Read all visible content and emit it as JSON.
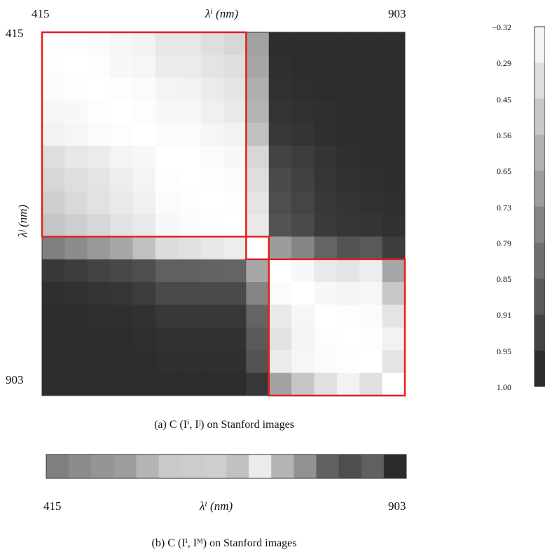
{
  "heatmap": {
    "x_start_label": "415",
    "x_end_label": "903",
    "y_start_label": "415",
    "y_end_label": "903",
    "x_axis_label": "λⁱ (nm)",
    "y_axis_label": "λʲ (nm)",
    "caption": "(a) C (Iⁱ, Iʲ) on Stanford images"
  },
  "colorbar": {
    "ticks": [
      "−0.32",
      "0.29",
      "0.45",
      "0.56",
      "0.65",
      "0.73",
      "0.79",
      "0.85",
      "0.91",
      "0.95",
      "1.00"
    ]
  },
  "strip": {
    "start_label": "415",
    "end_label": "903",
    "axis_label": "λⁱ (nm)",
    "caption": "(b) C (Iⁱ, Iᴹ) on Stanford images"
  },
  "colors": {
    "highlight": "#e02020",
    "dark": "#222222",
    "light": "#ffffff"
  },
  "chart_data": [
    {
      "type": "heatmap",
      "title": "(a) C (Iⁱ, Iʲ) on Stanford images",
      "xlabel": "λⁱ (nm)",
      "ylabel": "λʲ (nm)",
      "x_range": [
        415,
        903
      ],
      "y_range": [
        415,
        903
      ],
      "colorbar_ticks": [
        -0.32,
        0.29,
        0.45,
        0.56,
        0.65,
        0.73,
        0.79,
        0.85,
        0.91,
        0.95,
        1.0
      ],
      "values": [
        [
          1.0,
          0.99,
          0.98,
          0.96,
          0.94,
          0.89,
          0.89,
          0.85,
          0.82,
          0.58,
          0.05,
          0.05,
          0.05,
          0.05,
          0.05,
          0.05
        ],
        [
          0.99,
          1.0,
          0.99,
          0.97,
          0.96,
          0.91,
          0.91,
          0.88,
          0.85,
          0.6,
          0.06,
          0.05,
          0.05,
          0.05,
          0.05,
          0.05
        ],
        [
          0.98,
          0.99,
          1.0,
          0.99,
          0.98,
          0.95,
          0.94,
          0.91,
          0.88,
          0.64,
          0.07,
          0.06,
          0.05,
          0.05,
          0.05,
          0.05
        ],
        [
          0.96,
          0.97,
          0.99,
          1.0,
          0.99,
          0.97,
          0.96,
          0.93,
          0.9,
          0.66,
          0.08,
          0.07,
          0.06,
          0.05,
          0.05,
          0.05
        ],
        [
          0.94,
          0.96,
          0.98,
          0.99,
          1.0,
          0.98,
          0.98,
          0.96,
          0.94,
          0.72,
          0.1,
          0.08,
          0.06,
          0.05,
          0.05,
          0.05
        ],
        [
          0.85,
          0.89,
          0.91,
          0.95,
          0.97,
          1.0,
          1.0,
          0.98,
          0.97,
          0.82,
          0.15,
          0.12,
          0.08,
          0.06,
          0.05,
          0.05
        ],
        [
          0.82,
          0.85,
          0.88,
          0.92,
          0.95,
          0.99,
          1.0,
          0.99,
          0.98,
          0.85,
          0.18,
          0.14,
          0.09,
          0.07,
          0.06,
          0.05
        ],
        [
          0.78,
          0.83,
          0.87,
          0.9,
          0.93,
          0.98,
          0.99,
          1.0,
          0.99,
          0.88,
          0.2,
          0.16,
          0.1,
          0.08,
          0.07,
          0.06
        ],
        [
          0.74,
          0.78,
          0.82,
          0.87,
          0.9,
          0.97,
          0.98,
          0.99,
          1.0,
          0.9,
          0.22,
          0.18,
          0.11,
          0.09,
          0.08,
          0.07
        ],
        [
          0.42,
          0.48,
          0.54,
          0.6,
          0.72,
          0.84,
          0.86,
          0.89,
          0.92,
          1.0,
          0.55,
          0.45,
          0.3,
          0.22,
          0.25,
          0.12
        ],
        [
          0.1,
          0.12,
          0.15,
          0.17,
          0.2,
          0.28,
          0.28,
          0.29,
          0.3,
          0.6,
          1.0,
          0.97,
          0.9,
          0.88,
          0.92,
          0.6
        ],
        [
          0.06,
          0.07,
          0.08,
          0.09,
          0.12,
          0.18,
          0.18,
          0.18,
          0.18,
          0.45,
          0.98,
          1.0,
          0.97,
          0.95,
          0.96,
          0.75
        ],
        [
          0.05,
          0.05,
          0.06,
          0.06,
          0.07,
          0.1,
          0.1,
          0.1,
          0.1,
          0.3,
          0.9,
          0.96,
          1.0,
          0.99,
          0.98,
          0.88
        ],
        [
          0.05,
          0.05,
          0.05,
          0.05,
          0.06,
          0.07,
          0.07,
          0.07,
          0.07,
          0.25,
          0.87,
          0.95,
          0.99,
          1.0,
          0.99,
          0.94
        ],
        [
          0.05,
          0.05,
          0.05,
          0.05,
          0.05,
          0.06,
          0.06,
          0.06,
          0.06,
          0.22,
          0.91,
          0.96,
          0.98,
          0.99,
          1.0,
          0.88
        ],
        [
          0.05,
          0.05,
          0.05,
          0.05,
          0.05,
          0.05,
          0.05,
          0.05,
          0.05,
          0.1,
          0.58,
          0.74,
          0.86,
          0.94,
          0.86,
          1.0
        ]
      ],
      "highlight_blocks": [
        [
          0,
          8
        ],
        [
          9,
          9
        ],
        [
          10,
          15
        ]
      ]
    },
    {
      "type": "heatmap",
      "title": "(b) C (Iⁱ, Iᴹ) on Stanford images",
      "xlabel": "λⁱ (nm)",
      "x_range": [
        415,
        903
      ],
      "values": [
        0.42,
        0.48,
        0.52,
        0.56,
        0.66,
        0.76,
        0.77,
        0.78,
        0.72,
        0.91,
        0.66,
        0.5,
        0.28,
        0.2,
        0.28,
        0.04
      ]
    }
  ]
}
